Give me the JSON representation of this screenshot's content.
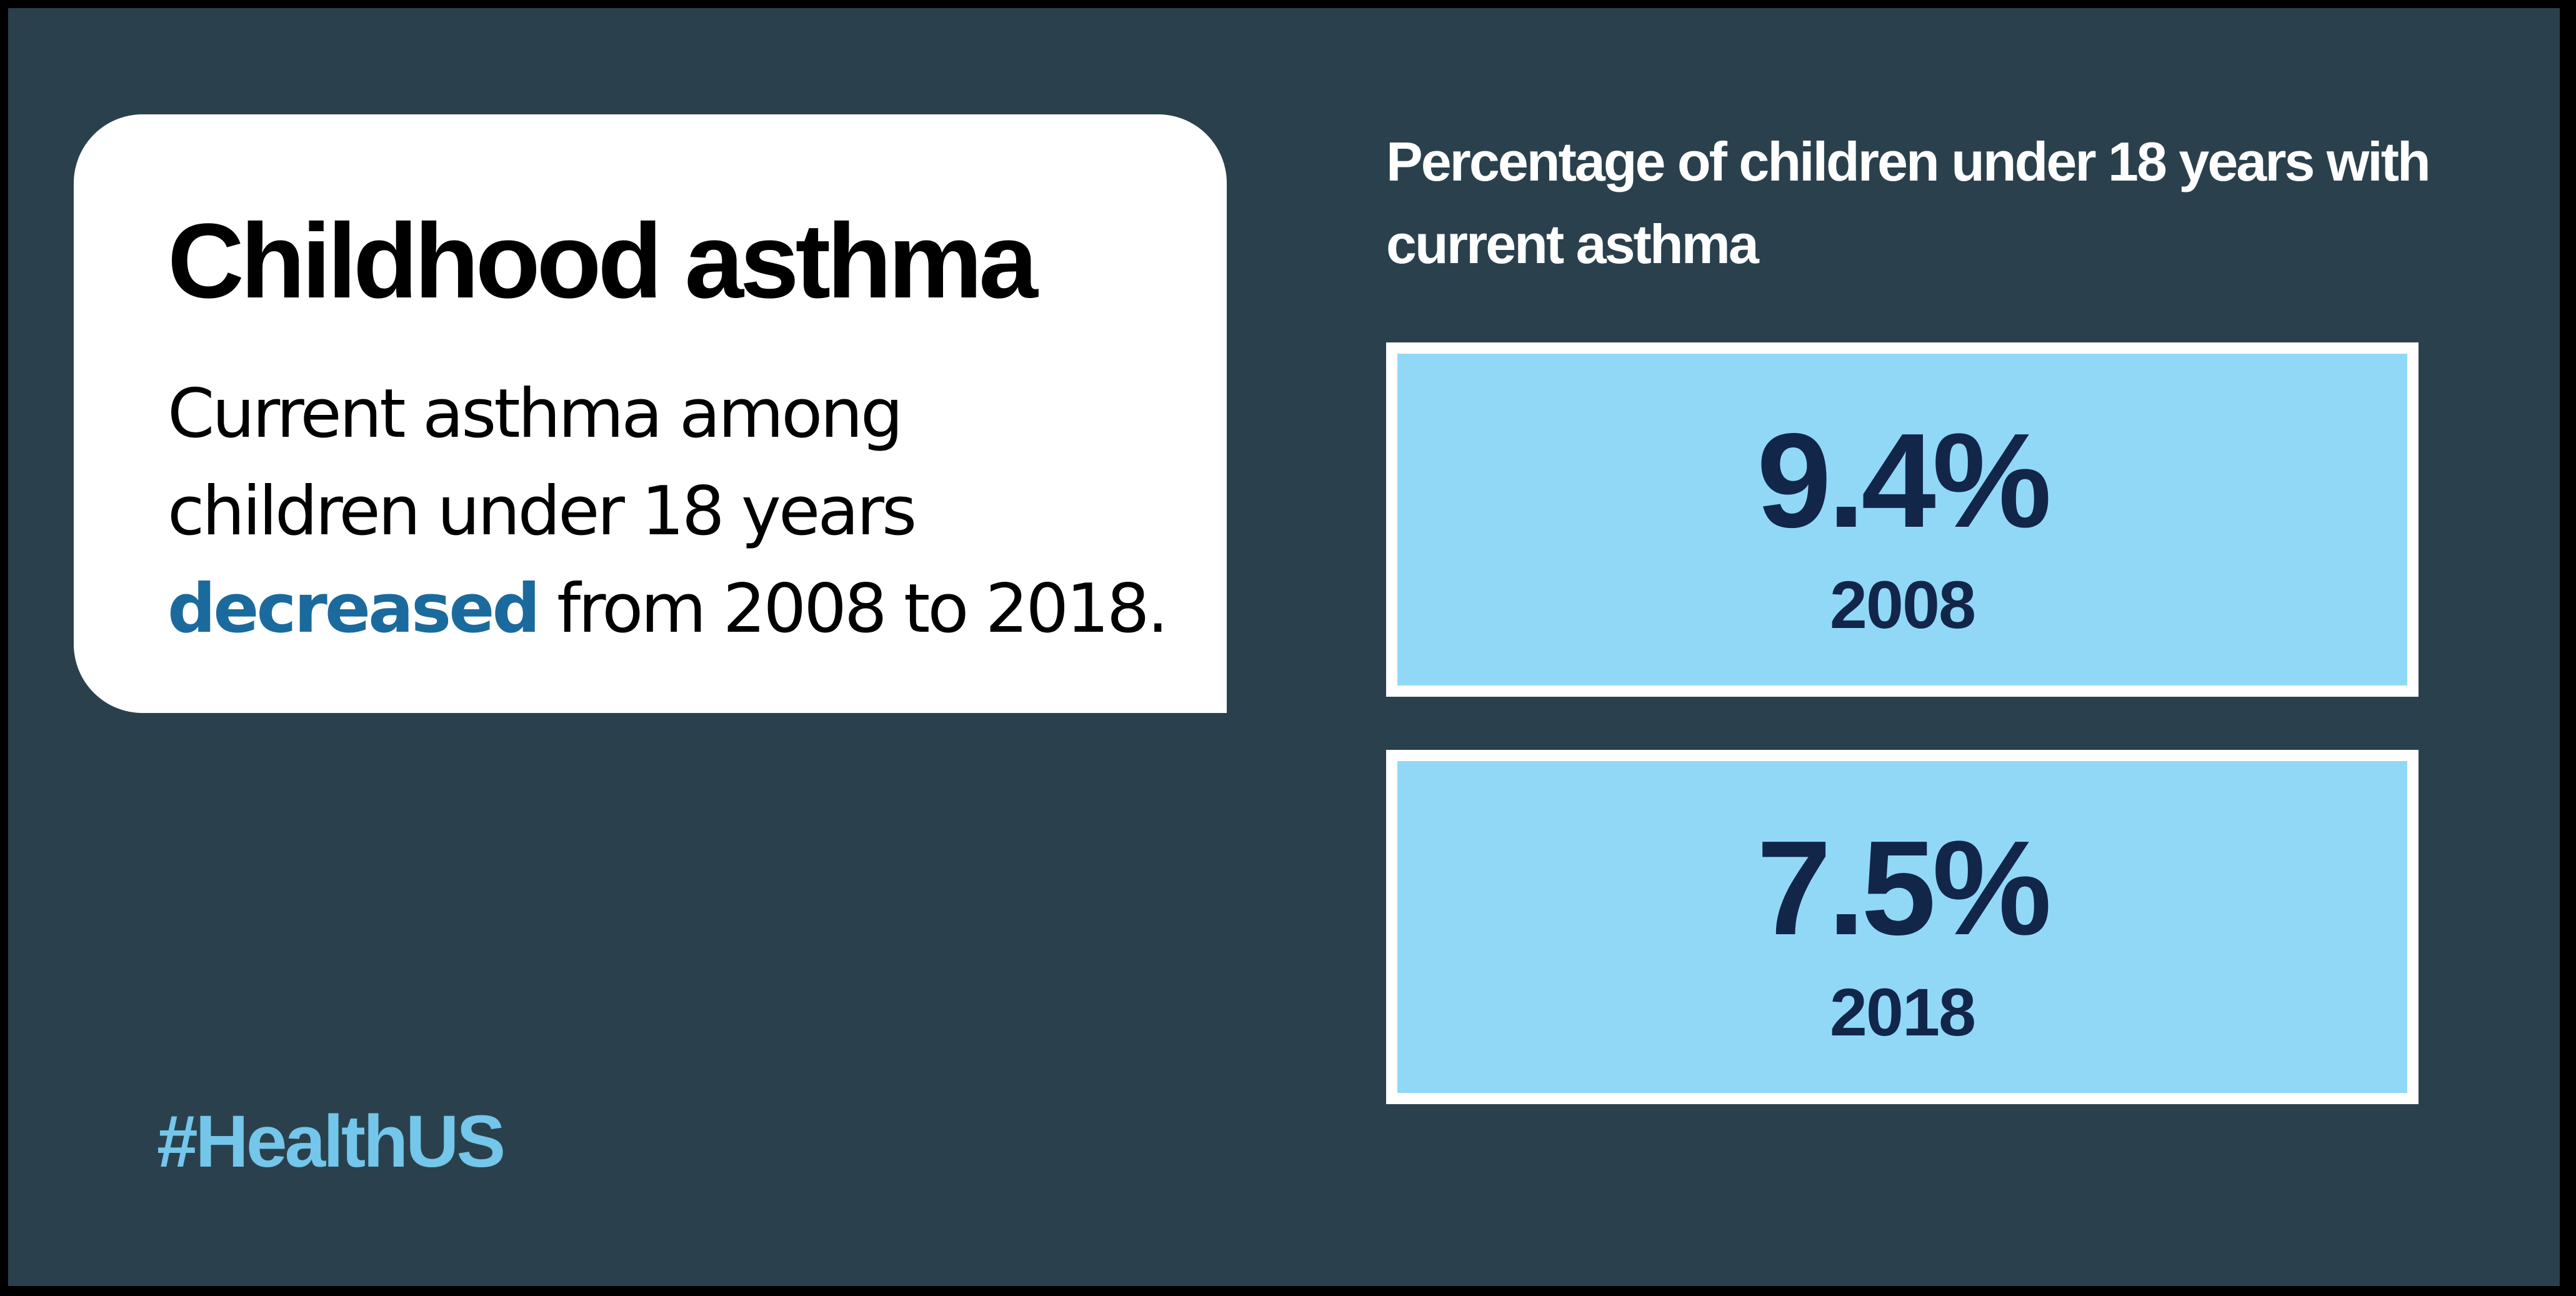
{
  "card": {
    "title": "Childhood asthma",
    "text_line1": "Current asthma among",
    "text_line2": "children under 18 years",
    "text_highlight": "decreased",
    "text_line3_rest": " from 2008 to 2018."
  },
  "chart_data": {
    "type": "table",
    "title_line1": "Percentage of children under 18 years with",
    "title_line2": "current asthma",
    "categories": [
      "2008",
      "2018"
    ],
    "values": [
      9.4,
      7.5
    ],
    "value_labels": [
      "9.4%",
      "7.5%"
    ]
  },
  "hashtag": "#HealthUS",
  "colors": {
    "background": "#2a414d",
    "card": "#ffffff",
    "highlight": "#1b6a9e",
    "stat_box_fill": "#91d8f7",
    "stat_text": "#12264a",
    "hashtag": "#74c6ea"
  }
}
